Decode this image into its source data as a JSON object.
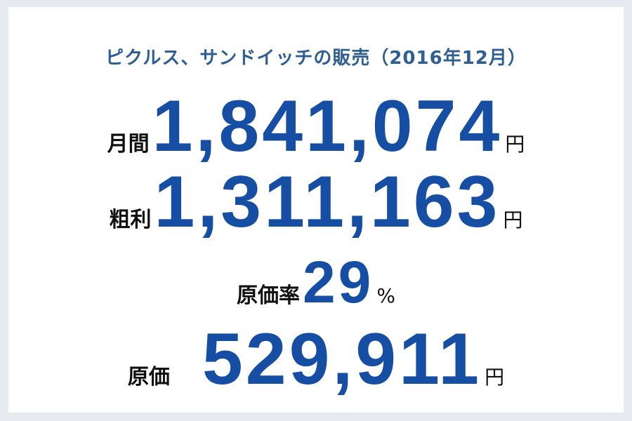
{
  "title": "ピクルス、サンドイッチの販売（2016年12月）",
  "rows": [
    {
      "label": "月間",
      "value": "1,841,074",
      "unit": "円"
    },
    {
      "label": "粗利",
      "value": "1,311,163",
      "unit": "円"
    },
    {
      "label": "原価率",
      "value": "29",
      "unit": "%"
    },
    {
      "label": "原価",
      "value": "529,911",
      "unit": "円"
    }
  ]
}
